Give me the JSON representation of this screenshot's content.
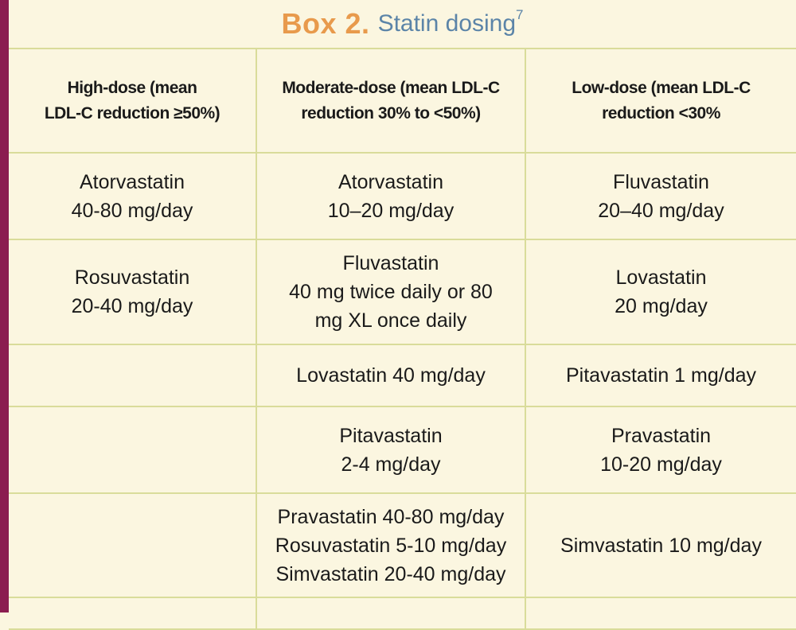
{
  "title": {
    "box_label": "Box 2.",
    "text": "Statin dosing",
    "ref": "7"
  },
  "headers": [
    [
      "High-dose (mean",
      "LDL-C reduction ≥50%)"
    ],
    [
      "Moderate-dose (mean LDL-C",
      "reduction 30% to <50%)"
    ],
    [
      "Low-dose (mean LDL-C",
      "reduction <30%"
    ]
  ],
  "rows": [
    [
      [
        "Atorvastatin",
        "40-80 mg/day"
      ],
      [
        "Atorvastatin",
        "10–20 mg/day"
      ],
      [
        "Fluvastatin",
        "20–40 mg/day"
      ]
    ],
    [
      [
        "Rosuvastatin",
        "20-40 mg/day"
      ],
      [
        "Fluvastatin",
        "40 mg twice daily or 80",
        "mg XL once daily"
      ],
      [
        "Lovastatin",
        "20 mg/day"
      ]
    ],
    [
      [],
      [
        "Lovastatin 40 mg/day"
      ],
      [
        "Pitavastatin 1 mg/day"
      ]
    ],
    [
      [],
      [
        "Pitavastatin",
        "2-4 mg/day"
      ],
      [
        "Pravastatin",
        "10-20 mg/day"
      ]
    ],
    [
      [],
      [
        "Pravastatin 40-80 mg/day",
        "Rosuvastatin 5-10 mg/day",
        "Simvastatin 20-40 mg/day"
      ],
      [
        "Simvastatin 10 mg/day"
      ]
    ]
  ],
  "colors": {
    "background": "#fbf6e0",
    "left_bar": "#8b1d50",
    "box_label": "#e89a4c",
    "box_title": "#5b84a8",
    "grid_lines": "#d9dc9a"
  }
}
